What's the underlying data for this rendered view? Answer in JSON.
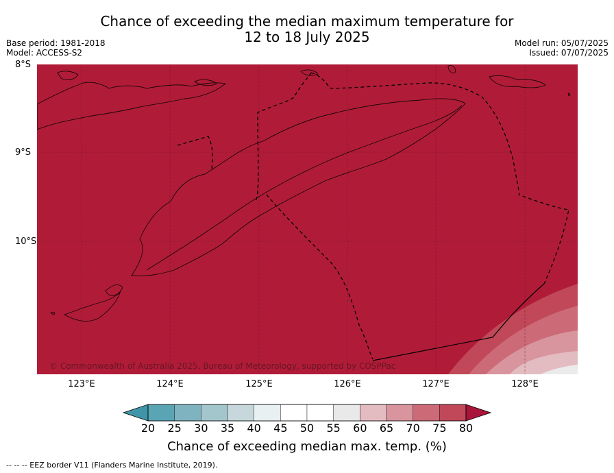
{
  "title_line1": "Chance of exceeding the median maximum temperature for",
  "title_line2": "12 to 18 July 2025",
  "base_period": "Base period: 1981-2018",
  "model": "Model: ACCESS-S2",
  "model_run": "Model run: 05/07/2025",
  "issued": "Issued: 07/07/2025",
  "map": {
    "latitudes": [
      "8°S",
      "9°S",
      "10°S"
    ],
    "longitudes": [
      "123°E",
      "124°E",
      "125°E",
      "126°E",
      "127°E",
      "128°E"
    ],
    "dominant_category": "80",
    "colors": {
      "c80": "#b01c38",
      "c75": "#c04858",
      "c70": "#cc6a78",
      "c65": "#d8959e",
      "c60": "#e3bcc2",
      "c55": "#ecebeb"
    }
  },
  "copyright": "© Commonwealth of Australia 2025, Bureau of Meteorology, supported by COSPPac",
  "colorbar": {
    "ticks": [
      "20",
      "25",
      "30",
      "35",
      "40",
      "45",
      "50",
      "55",
      "60",
      "65",
      "70",
      "75",
      "80"
    ],
    "colors": [
      "#5aa5b4",
      "#7fb3c0",
      "#a3c6cc",
      "#c6d8dc",
      "#e8f0f2",
      "#ffffff",
      "#ffffff",
      "#e9e9e9",
      "#e3bcc2",
      "#d8959e",
      "#cc6a78",
      "#c04858"
    ],
    "low_extend_color": "#3f95a7",
    "high_extend_color": "#a9143a",
    "label": "Chance of exceeding median max. temp. (%)"
  },
  "footnote": "--  --  -- EEZ border V11 (Flanders Marine Institute, 2019)."
}
